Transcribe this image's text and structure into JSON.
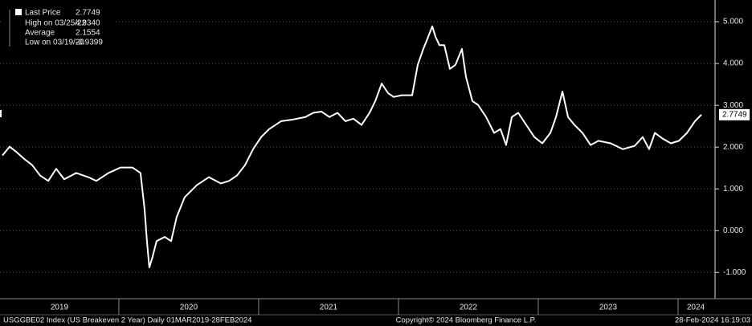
{
  "chart_data": {
    "type": "line",
    "series": [
      {
        "name": "Last Price",
        "color": "#ffffff",
        "x": [
          2019.167,
          2019.219,
          2019.265,
          2019.322,
          2019.38,
          2019.437,
          2019.495,
          2019.552,
          2019.609,
          2019.695,
          2019.782,
          2019.839,
          2019.926,
          2020.011,
          2020.098,
          2020.155,
          2020.184,
          2020.201,
          2020.218,
          2020.241,
          2020.27,
          2020.328,
          2020.374,
          2020.414,
          2020.471,
          2020.558,
          2020.644,
          2020.73,
          2020.788,
          2020.845,
          2020.903,
          2020.96,
          2021.018,
          2021.075,
          2021.161,
          2021.247,
          2021.334,
          2021.391,
          2021.449,
          2021.506,
          2021.564,
          2021.621,
          2021.678,
          2021.736,
          2021.793,
          2021.834,
          2021.88,
          2021.926,
          2021.966,
          2022.023,
          2022.098,
          2022.138,
          2022.178,
          2022.213,
          2022.242,
          2022.265,
          2022.293,
          2022.328,
          2022.368,
          2022.408,
          2022.454,
          2022.483,
          2022.529,
          2022.569,
          2022.627,
          2022.684,
          2022.73,
          2022.77,
          2022.811,
          2022.857,
          2022.914,
          2022.972,
          2023.029,
          2023.087,
          2023.127,
          2023.173,
          2023.213,
          2023.259,
          2023.316,
          2023.374,
          2023.431,
          2023.518,
          2023.604,
          2023.69,
          2023.747,
          2023.793,
          2023.834,
          2023.891,
          2023.949,
          2024.006,
          2024.064,
          2024.121,
          2024.167
        ],
        "values": [
          1.8,
          2.01,
          1.89,
          1.72,
          1.57,
          1.32,
          1.19,
          1.48,
          1.23,
          1.38,
          1.28,
          1.19,
          1.38,
          1.51,
          1.51,
          1.38,
          0.52,
          -0.25,
          -0.88,
          -0.63,
          -0.25,
          -0.15,
          -0.25,
          0.33,
          0.8,
          1.09,
          1.28,
          1.13,
          1.19,
          1.32,
          1.57,
          1.95,
          2.24,
          2.43,
          2.62,
          2.66,
          2.72,
          2.82,
          2.85,
          2.72,
          2.82,
          2.62,
          2.68,
          2.53,
          2.82,
          3.1,
          3.52,
          3.29,
          3.2,
          3.24,
          3.24,
          3.97,
          4.35,
          4.64,
          4.89,
          4.64,
          4.44,
          4.44,
          3.87,
          3.97,
          4.35,
          3.68,
          3.1,
          3.01,
          2.72,
          2.34,
          2.43,
          2.05,
          2.72,
          2.82,
          2.53,
          2.24,
          2.09,
          2.34,
          2.72,
          3.33,
          2.72,
          2.53,
          2.34,
          2.05,
          2.15,
          2.09,
          1.95,
          2.03,
          2.24,
          1.95,
          2.34,
          2.2,
          2.09,
          2.15,
          2.34,
          2.62,
          2.7749
        ]
      }
    ],
    "last_value_label": "2.7749",
    "stats": [
      {
        "label": "High on 03/25/22",
        "value": "4.9340"
      },
      {
        "label": "Average",
        "value": "2.1554"
      },
      {
        "label": "Low on 03/19/20",
        "value": "-0.9399"
      }
    ],
    "xlim": [
      2019.15,
      2024.253
    ],
    "xticks": [
      2020,
      2021,
      2022,
      2023,
      2024
    ],
    "year_labels": [
      2019,
      2020,
      2021,
      2022,
      2023,
      2024
    ],
    "ylim": [
      -1.59,
      5.52
    ],
    "yticks": [
      {
        "value": -1,
        "label": "-1.000"
      },
      {
        "value": 0,
        "label": "0.000"
      },
      {
        "value": 1,
        "label": "1.000"
      },
      {
        "value": 2,
        "label": "2.000"
      },
      {
        "value": 3,
        "label": "3.000"
      },
      {
        "value": 4,
        "label": "4.000"
      },
      {
        "value": 5,
        "label": "5.000"
      }
    ],
    "grid": true,
    "footer": {
      "left": "USGGBE02 Index (US Breakeven 2 Year)  Daily 01MAR2019-28FEB2024",
      "center": "Copyright© 2024 Bloomberg Finance L.P.",
      "right": "28-Feb-2024 16:19:03"
    }
  }
}
